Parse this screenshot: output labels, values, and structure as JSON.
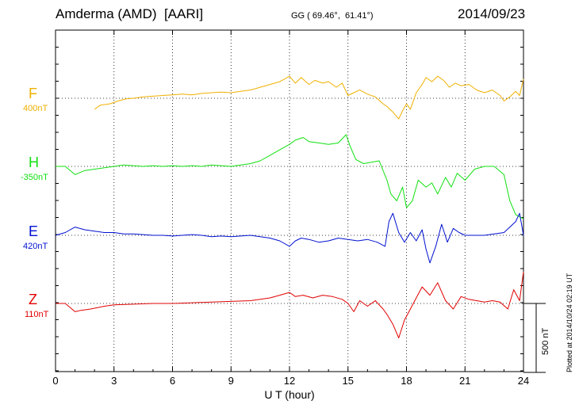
{
  "header": {
    "station": "Amderma (AMD)  [AARI]",
    "coords": "GG ( 69.46°,  61.41°)",
    "date": "2014/09/23"
  },
  "plotted_stamp": "Plotted at 2014/10/24 02:19 UT",
  "scale_bar_label": "500 nT",
  "chart_data": {
    "type": "line",
    "xlabel": "U T (hour)",
    "xlim": [
      0,
      24
    ],
    "xticks": [
      0,
      3,
      6,
      9,
      12,
      15,
      18,
      21,
      24
    ],
    "scale_nT": 500,
    "grid": true,
    "series": [
      {
        "name": "F",
        "baseline": "400nT",
        "color": "#f0b000",
        "x": [
          2.0,
          2.3,
          2.8,
          3.2,
          3.6,
          4.0,
          4.5,
          5.0,
          5.5,
          6.0,
          6.5,
          7.0,
          7.5,
          8.0,
          8.5,
          9.0,
          9.5,
          10.0,
          10.5,
          11.0,
          11.5,
          12.0,
          12.3,
          12.6,
          13.0,
          13.3,
          13.7,
          14.0,
          14.4,
          14.7,
          15.0,
          15.3,
          15.6,
          16.0,
          16.4,
          16.8,
          17.0,
          17.3,
          17.6,
          17.8,
          18.0,
          18.2,
          18.5,
          18.8,
          19.0,
          19.3,
          19.6,
          19.9,
          20.2,
          20.5,
          20.8,
          21.2,
          21.6,
          22.0,
          22.4,
          22.8,
          23.0,
          23.3,
          23.6,
          23.8,
          24.0
        ],
        "y": [
          -80,
          -50,
          -40,
          -20,
          -5,
          0,
          10,
          15,
          20,
          25,
          30,
          25,
          35,
          40,
          45,
          40,
          50,
          60,
          80,
          100,
          120,
          160,
          110,
          150,
          100,
          130,
          110,
          120,
          80,
          110,
          20,
          40,
          60,
          30,
          10,
          -40,
          -60,
          -100,
          -150,
          -90,
          -40,
          -80,
          40,
          100,
          150,
          120,
          160,
          130,
          80,
          110,
          90,
          100,
          60,
          40,
          60,
          20,
          -20,
          10,
          50,
          20,
          140
        ]
      },
      {
        "name": "H",
        "baseline": "-350nT",
        "color": "#10e010",
        "x": [
          0,
          0.5,
          1.0,
          1.5,
          2.0,
          2.5,
          3.0,
          3.5,
          4.0,
          4.5,
          5.0,
          5.5,
          6.0,
          6.5,
          7.0,
          7.5,
          8.0,
          8.5,
          9.0,
          9.5,
          10.0,
          10.5,
          11.0,
          11.5,
          12.0,
          12.3,
          12.7,
          13.0,
          13.5,
          14.0,
          14.5,
          14.9,
          15.1,
          15.4,
          15.8,
          16.2,
          16.6,
          17.0,
          17.2,
          17.5,
          17.8,
          18.0,
          18.3,
          18.6,
          19.0,
          19.3,
          19.6,
          20.0,
          20.3,
          20.6,
          21.0,
          21.5,
          22.0,
          22.5,
          23.0,
          23.3,
          23.6,
          24.0
        ],
        "y": [
          0,
          0,
          -60,
          -30,
          -20,
          -10,
          0,
          10,
          5,
          0,
          5,
          0,
          5,
          0,
          5,
          0,
          10,
          5,
          0,
          10,
          20,
          40,
          80,
          120,
          160,
          190,
          210,
          180,
          170,
          160,
          170,
          230,
          150,
          50,
          20,
          30,
          40,
          -100,
          -200,
          -250,
          -150,
          -300,
          -250,
          -100,
          -150,
          -120,
          -200,
          -80,
          -150,
          -50,
          -100,
          -20,
          0,
          0,
          -60,
          -250,
          -350,
          -380
        ]
      },
      {
        "name": "E",
        "baseline": "420nT",
        "color": "#0010d0",
        "x": [
          0,
          0.5,
          1.0,
          1.5,
          2.0,
          2.5,
          3.0,
          3.5,
          4.0,
          4.5,
          5.0,
          5.5,
          6.0,
          6.5,
          7.0,
          7.5,
          8.0,
          8.5,
          9.0,
          9.5,
          10.0,
          10.5,
          11.0,
          11.5,
          12.0,
          12.3,
          12.6,
          13.0,
          13.5,
          14.0,
          14.5,
          15.0,
          15.5,
          16.0,
          16.5,
          16.9,
          17.1,
          17.3,
          17.6,
          17.9,
          18.2,
          18.5,
          18.8,
          19.0,
          19.2,
          19.5,
          19.8,
          20.1,
          20.4,
          20.7,
          21.0,
          21.5,
          22.0,
          22.5,
          23.0,
          23.3,
          23.6,
          23.8,
          24.0
        ],
        "y": [
          0,
          20,
          60,
          40,
          30,
          20,
          20,
          10,
          10,
          5,
          0,
          0,
          -5,
          0,
          5,
          0,
          -10,
          -5,
          -10,
          -5,
          0,
          -10,
          -20,
          -40,
          -80,
          -40,
          -20,
          -30,
          -50,
          -40,
          -20,
          -30,
          -40,
          -30,
          -50,
          -80,
          100,
          160,
          20,
          -50,
          20,
          -40,
          40,
          -100,
          -200,
          -80,
          80,
          -50,
          50,
          20,
          0,
          0,
          0,
          10,
          20,
          60,
          100,
          160,
          0
        ]
      },
      {
        "name": "Z",
        "baseline": "110nT",
        "color": "#e00000",
        "x": [
          0,
          0.5,
          1.0,
          1.3,
          1.8,
          2.5,
          3.0,
          4.0,
          5.0,
          6.0,
          7.0,
          8.0,
          9.0,
          10.0,
          10.5,
          11.0,
          11.5,
          12.0,
          12.3,
          12.7,
          13.2,
          13.7,
          14.2,
          14.7,
          15.0,
          15.3,
          15.6,
          16.0,
          16.4,
          16.8,
          17.0,
          17.3,
          17.6,
          17.9,
          18.2,
          18.5,
          18.8,
          19.2,
          19.6,
          20.0,
          20.4,
          20.8,
          21.2,
          21.6,
          22.0,
          22.4,
          22.8,
          23.2,
          23.5,
          23.8,
          24.0
        ],
        "y": [
          0,
          0,
          -60,
          -50,
          -40,
          -20,
          -10,
          -5,
          0,
          0,
          5,
          10,
          15,
          20,
          30,
          40,
          60,
          80,
          50,
          60,
          40,
          60,
          50,
          30,
          0,
          -60,
          20,
          -20,
          20,
          -40,
          -80,
          -150,
          -250,
          -120,
          -40,
          40,
          120,
          60,
          150,
          20,
          -40,
          50,
          30,
          20,
          10,
          20,
          10,
          -40,
          100,
          20,
          230
        ]
      }
    ]
  }
}
